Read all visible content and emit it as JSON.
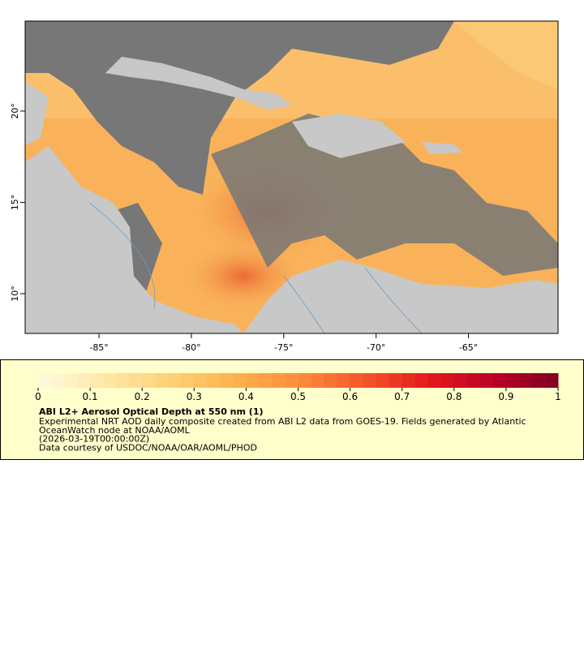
{
  "map": {
    "xlim": [
      -89,
      -60.15
    ],
    "ylim": [
      7.82,
      24.93
    ],
    "xticks": [
      {
        "value": -85,
        "label": "-85°"
      },
      {
        "value": -80,
        "label": "-80°"
      },
      {
        "value": -75,
        "label": "-75°"
      },
      {
        "value": -70,
        "label": "-70°"
      },
      {
        "value": -65,
        "label": "-65°"
      }
    ],
    "yticks": [
      {
        "value": 10,
        "label": "10°"
      },
      {
        "value": 15,
        "label": "15°"
      },
      {
        "value": 20,
        "label": "20°"
      }
    ]
  },
  "legend": {
    "title": "ABI L2+ Aerosol Optical Depth at 550 nm (1)",
    "lines": [
      "Experimental NRT AOD daily composite created from ABI L2 data from GOES-19. Fields generated by Atlantic",
      "OceanWatch node at NOAA/AOML",
      "(2026-03-19T00:00:00Z)",
      "Data courtesy of USDOC/NOAA/OAR/AOML/PHOD"
    ],
    "colorbar": {
      "range": [
        0,
        1
      ],
      "ticks": [
        0,
        0.1,
        0.2,
        0.3,
        0.4,
        0.5,
        0.6,
        0.7,
        0.8,
        0.9,
        1
      ],
      "steps": 40,
      "colors": [
        "#fffbe0",
        "#fee8a8",
        "#fed27a",
        "#feb24c",
        "#fd8d3c",
        "#f4572a",
        "#e31a1c",
        "#bd0026",
        "#800026"
      ]
    }
  }
}
